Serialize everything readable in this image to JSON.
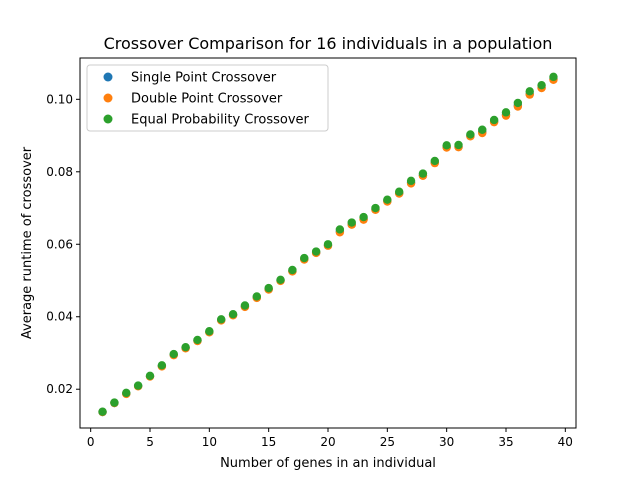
{
  "chart_data": {
    "type": "scatter",
    "title": "Crossover Comparison for 16 individuals in a population",
    "xlabel": "Number of genes in an individual",
    "ylabel": "Average runtime of crossover",
    "xlim": [
      -0.9,
      40.9
    ],
    "ylim": [
      0.0093,
      0.1114
    ],
    "xticks": [
      0,
      5,
      10,
      15,
      20,
      25,
      30,
      35,
      40
    ],
    "yticks": [
      0.02,
      0.04,
      0.06,
      0.08,
      0.1
    ],
    "ytick_labels": [
      "0.02",
      "0.04",
      "0.06",
      "0.08",
      "0.10"
    ],
    "grid": false,
    "legend_position": "upper-left",
    "x": [
      1,
      2,
      3,
      4,
      5,
      6,
      7,
      8,
      9,
      10,
      11,
      12,
      13,
      14,
      15,
      16,
      17,
      18,
      19,
      20,
      21,
      22,
      23,
      24,
      25,
      26,
      27,
      28,
      29,
      30,
      31,
      32,
      33,
      34,
      35,
      36,
      37,
      38,
      39
    ],
    "series": [
      {
        "name": "Single Point Crossover",
        "color": "#1f77b4",
        "values": [
          0.0137,
          0.0162,
          0.0188,
          0.0209,
          0.0236,
          0.0264,
          0.0295,
          0.0314,
          0.0334,
          0.0358,
          0.0391,
          0.0405,
          0.0428,
          0.0453,
          0.0476,
          0.05,
          0.0526,
          0.0559,
          0.0577,
          0.0597,
          0.0636,
          0.0655,
          0.067,
          0.0696,
          0.072,
          0.0741,
          0.077,
          0.079,
          0.0826,
          0.0868,
          0.0869,
          0.0899,
          0.091,
          0.0939,
          0.0958,
          0.0983,
          0.1015,
          0.1033,
          0.1056
        ]
      },
      {
        "name": "Double Point Crossover",
        "color": "#ff7f0e",
        "values": [
          0.0137,
          0.0162,
          0.0187,
          0.0208,
          0.0235,
          0.0263,
          0.0294,
          0.0313,
          0.0333,
          0.0357,
          0.039,
          0.0404,
          0.0427,
          0.0452,
          0.0475,
          0.0499,
          0.0525,
          0.0558,
          0.0576,
          0.0596,
          0.0633,
          0.0654,
          0.0668,
          0.0695,
          0.0718,
          0.074,
          0.0768,
          0.0789,
          0.0824,
          0.0867,
          0.0868,
          0.0898,
          0.0907,
          0.0937,
          0.0955,
          0.098,
          0.1013,
          0.1031,
          0.1054
        ]
      },
      {
        "name": "Equal Probability Crossover",
        "color": "#2ca02c",
        "values": [
          0.0138,
          0.0163,
          0.019,
          0.021,
          0.0237,
          0.0266,
          0.0297,
          0.0316,
          0.0336,
          0.036,
          0.0393,
          0.0407,
          0.0431,
          0.0456,
          0.0479,
          0.0502,
          0.0529,
          0.0562,
          0.058,
          0.06,
          0.0641,
          0.066,
          0.0675,
          0.07,
          0.0723,
          0.0745,
          0.0775,
          0.0795,
          0.083,
          0.0873,
          0.0874,
          0.0903,
          0.0916,
          0.0943,
          0.0964,
          0.099,
          0.1022,
          0.1039,
          0.1062
        ]
      }
    ]
  }
}
